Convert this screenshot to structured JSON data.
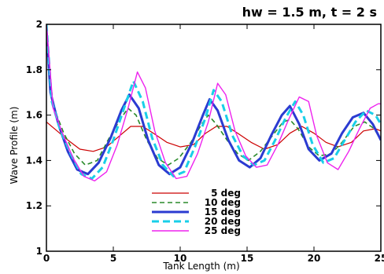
{
  "chart_data": {
    "type": "line",
    "title": "hw = 1.5 m, t = 2 s",
    "xlabel": "Tank Length (m)",
    "ylabel": "Wave Profile (m)",
    "xlim": [
      0,
      25
    ],
    "ylim": [
      1,
      2
    ],
    "xticks": [
      "0",
      "5",
      "10",
      "15",
      "20",
      "25"
    ],
    "yticks": [
      "1",
      "1.2",
      "1.4",
      "1.6",
      "1.8",
      "2"
    ],
    "grid": false,
    "legend_position": "bottom-center",
    "series": [
      {
        "name": "5 deg",
        "color": "#cc0000",
        "dash": "solid",
        "width": 1.2,
        "x": [
          0,
          0.8,
          1.6,
          2.5,
          3.5,
          4.5,
          5.5,
          6.3,
          7.2,
          8.0,
          9.0,
          10.0,
          11.0,
          11.9,
          12.7,
          13.5,
          14.3,
          15.3,
          16.3,
          17.3,
          18.2,
          19.1,
          20.0,
          20.9,
          21.8,
          22.8,
          23.7,
          24.6,
          25.0
        ],
        "y": [
          1.57,
          1.53,
          1.49,
          1.45,
          1.44,
          1.46,
          1.51,
          1.55,
          1.55,
          1.52,
          1.48,
          1.46,
          1.47,
          1.52,
          1.55,
          1.55,
          1.52,
          1.48,
          1.45,
          1.47,
          1.52,
          1.55,
          1.52,
          1.48,
          1.46,
          1.48,
          1.53,
          1.54,
          1.53
        ]
      },
      {
        "name": "10 deg",
        "color": "#2a8a2a",
        "dash": "dash",
        "width": 1.6,
        "x": [
          0.0,
          0.5,
          1.3,
          2.1,
          2.9,
          3.8,
          4.7,
          5.5,
          6.1,
          6.7,
          7.5,
          8.3,
          9.1,
          9.9,
          10.8,
          11.6,
          12.1,
          12.7,
          13.5,
          14.3,
          15.1,
          16.0,
          16.9,
          17.7,
          18.2,
          18.8,
          19.6,
          20.4,
          21.3,
          22.1,
          23.0,
          23.8,
          24.5,
          25.0
        ],
        "y": [
          1.95,
          1.64,
          1.52,
          1.43,
          1.38,
          1.4,
          1.5,
          1.58,
          1.63,
          1.6,
          1.49,
          1.41,
          1.38,
          1.41,
          1.48,
          1.56,
          1.6,
          1.56,
          1.49,
          1.43,
          1.4,
          1.44,
          1.51,
          1.57,
          1.58,
          1.54,
          1.46,
          1.42,
          1.43,
          1.48,
          1.55,
          1.57,
          1.54,
          1.49
        ]
      },
      {
        "name": "15 deg",
        "color": "#2b3bd1",
        "dash": "solid",
        "width": 3,
        "x": [
          0.0,
          0.3,
          0.9,
          1.6,
          2.3,
          3.1,
          3.9,
          4.8,
          5.6,
          6.2,
          6.9,
          7.6,
          8.4,
          9.2,
          10.0,
          10.9,
          11.7,
          12.2,
          12.8,
          13.6,
          14.4,
          15.2,
          16.0,
          16.8,
          17.6,
          18.2,
          18.9,
          19.6,
          20.4,
          21.3,
          22.1,
          22.9,
          23.7,
          24.4,
          25.0
        ],
        "y": [
          1.98,
          1.7,
          1.56,
          1.44,
          1.36,
          1.34,
          1.39,
          1.5,
          1.62,
          1.69,
          1.63,
          1.49,
          1.38,
          1.34,
          1.37,
          1.48,
          1.6,
          1.67,
          1.62,
          1.49,
          1.4,
          1.37,
          1.41,
          1.51,
          1.6,
          1.64,
          1.56,
          1.45,
          1.4,
          1.43,
          1.52,
          1.59,
          1.61,
          1.56,
          1.49
        ]
      },
      {
        "name": "20 deg",
        "color": "#19cfe8",
        "dash": "dash",
        "width": 3,
        "x": [
          0.0,
          0.4,
          1.0,
          1.8,
          2.6,
          3.4,
          4.2,
          5.0,
          5.8,
          6.5,
          7.2,
          7.9,
          8.7,
          9.5,
          10.3,
          11.1,
          11.9,
          12.5,
          13.1,
          13.9,
          14.7,
          15.5,
          16.3,
          17.1,
          17.9,
          18.6,
          19.2,
          19.9,
          20.7,
          21.5,
          22.3,
          23.1,
          23.9,
          24.6,
          25.0
        ],
        "y": [
          2.0,
          1.66,
          1.54,
          1.43,
          1.34,
          1.32,
          1.37,
          1.49,
          1.63,
          1.75,
          1.66,
          1.5,
          1.38,
          1.33,
          1.35,
          1.46,
          1.59,
          1.71,
          1.66,
          1.51,
          1.42,
          1.38,
          1.4,
          1.49,
          1.59,
          1.66,
          1.6,
          1.47,
          1.39,
          1.41,
          1.49,
          1.57,
          1.62,
          1.6,
          1.56
        ]
      },
      {
        "name": "25 deg",
        "color": "#ee22ee",
        "dash": "solid",
        "width": 1.4,
        "x": [
          0.0,
          0.5,
          1.2,
          2.0,
          2.8,
          3.6,
          4.5,
          5.3,
          6.1,
          6.8,
          7.4,
          8.1,
          8.9,
          9.7,
          10.5,
          11.3,
          12.1,
          12.8,
          13.4,
          14.1,
          14.9,
          15.7,
          16.5,
          17.3,
          18.1,
          18.9,
          19.6,
          20.2,
          21.0,
          21.8,
          22.6,
          23.4,
          24.2,
          24.8,
          25.0
        ],
        "y": [
          2.0,
          1.63,
          1.52,
          1.41,
          1.33,
          1.31,
          1.35,
          1.47,
          1.63,
          1.79,
          1.72,
          1.53,
          1.39,
          1.32,
          1.33,
          1.43,
          1.57,
          1.74,
          1.69,
          1.53,
          1.42,
          1.37,
          1.38,
          1.47,
          1.58,
          1.68,
          1.66,
          1.51,
          1.39,
          1.36,
          1.44,
          1.54,
          1.63,
          1.65,
          1.65
        ]
      }
    ]
  }
}
